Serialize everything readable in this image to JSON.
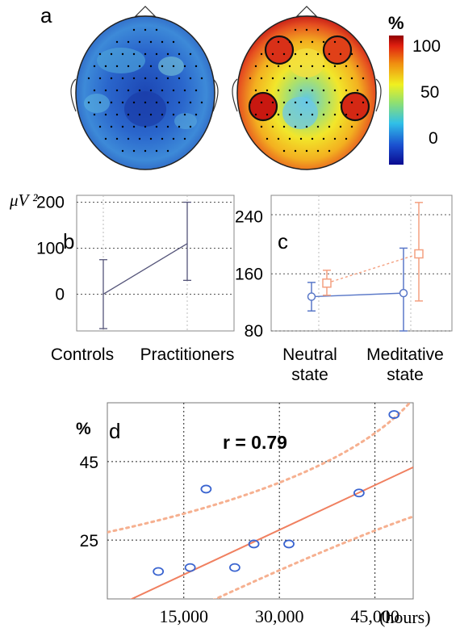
{
  "panel_a": {
    "letter": "a",
    "colorbar": {
      "unit": "%",
      "ticks": [
        "100",
        "50",
        "0"
      ],
      "max": 100,
      "min": 0
    },
    "map_left": {
      "dominant": "blue"
    },
    "map_right": {
      "dominant": "yellow-red",
      "highlight_regions": 4
    }
  },
  "chart_data": [
    {
      "id": "b",
      "type": "line",
      "letter": "b",
      "ylabel": "μV ²",
      "ylim": [
        -80,
        215
      ],
      "yticks": [
        0,
        100,
        200
      ],
      "categories": [
        "Controls",
        "Practitioners"
      ],
      "series": [
        {
          "values": [
            0,
            110
          ],
          "err_low": [
            -75,
            30
          ],
          "err_high": [
            75,
            200
          ],
          "color": "#55557a"
        }
      ],
      "grid": true
    },
    {
      "id": "c",
      "type": "line",
      "letter": "c",
      "ylim": [
        80,
        270
      ],
      "yticks": [
        80,
        160,
        240
      ],
      "categories": [
        "Neutral state",
        "Meditative state"
      ],
      "category_lines": [
        [
          "Neutral",
          "state"
        ],
        [
          "Meditative",
          "state"
        ]
      ],
      "series": [
        {
          "values": [
            128,
            133
          ],
          "err_low": [
            108,
            80
          ],
          "err_high": [
            148,
            196
          ],
          "color": "#5a78c8"
        },
        {
          "values": [
            147,
            188
          ],
          "err_low": [
            130,
            122
          ],
          "err_high": [
            165,
            260
          ],
          "color": "#f4a080"
        }
      ],
      "grid": true
    },
    {
      "id": "d",
      "type": "scatter",
      "letter": "d",
      "ylabel": "%",
      "xlabel": "(hours)",
      "annotation": "r = 0.79",
      "xticks": [
        "15,000",
        "30,000",
        "45,000"
      ],
      "ytick_labels": [
        "45",
        "25"
      ],
      "xlim": [
        3000,
        51000
      ],
      "ylim": [
        10,
        60
      ],
      "points": [
        {
          "x": 11000,
          "y": 17
        },
        {
          "x": 16000,
          "y": 18
        },
        {
          "x": 18500,
          "y": 38
        },
        {
          "x": 23000,
          "y": 18
        },
        {
          "x": 26000,
          "y": 24
        },
        {
          "x": 31500,
          "y": 24
        },
        {
          "x": 42500,
          "y": 37
        },
        {
          "x": 48000,
          "y": 57
        }
      ],
      "fit": {
        "slope": 0.00076,
        "intercept": 4.8,
        "color": "#f08060"
      },
      "ci_upper": [
        [
          3000,
          27
        ],
        [
          40000,
          40
        ],
        [
          51000,
          61
        ]
      ],
      "ci_lower": [
        [
          3000,
          -3
        ],
        [
          35000,
          22
        ],
        [
          51000,
          31
        ]
      ],
      "grid": true
    }
  ]
}
